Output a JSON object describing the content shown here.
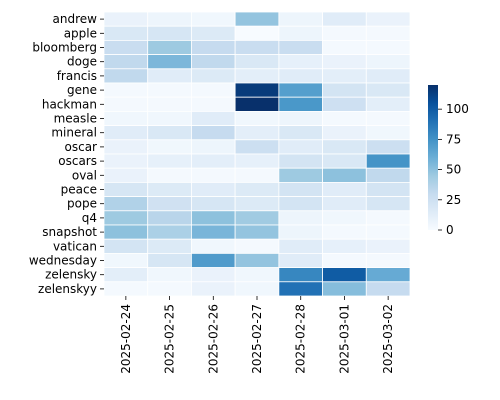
{
  "chart_data": {
    "type": "heatmap",
    "rows": [
      "andrew",
      "apple",
      "bloomberg",
      "doge",
      "francis",
      "gene",
      "hackman",
      "measle",
      "mineral",
      "oscar",
      "oscars",
      "oval",
      "peace",
      "pope",
      "q4",
      "snapshot",
      "vatican",
      "wednesday",
      "zelensky",
      "zelenskyy"
    ],
    "columns": [
      "2025-02-24",
      "2025-02-25",
      "2025-02-26",
      "2025-02-27",
      "2025-02-28",
      "2025-03-01",
      "2025-03-02"
    ],
    "values": [
      [
        8,
        6,
        4,
        48,
        6,
        14,
        8
      ],
      [
        18,
        20,
        16,
        0,
        6,
        2,
        2
      ],
      [
        28,
        45,
        30,
        28,
        28,
        2,
        2
      ],
      [
        32,
        55,
        32,
        18,
        10,
        8,
        6
      ],
      [
        32,
        14,
        16,
        12,
        14,
        12,
        14
      ],
      [
        2,
        2,
        2,
        115,
        68,
        22,
        18
      ],
      [
        2,
        2,
        2,
        120,
        72,
        25,
        12
      ],
      [
        4,
        4,
        14,
        4,
        6,
        2,
        2
      ],
      [
        14,
        18,
        30,
        12,
        18,
        8,
        4
      ],
      [
        8,
        4,
        6,
        26,
        14,
        18,
        26
      ],
      [
        8,
        10,
        12,
        10,
        22,
        18,
        74
      ],
      [
        8,
        2,
        2,
        2,
        45,
        50,
        32
      ],
      [
        20,
        16,
        14,
        16,
        22,
        14,
        22
      ],
      [
        38,
        24,
        20,
        16,
        22,
        14,
        20
      ],
      [
        45,
        35,
        50,
        44,
        6,
        4,
        2
      ],
      [
        50,
        40,
        56,
        48,
        6,
        2,
        2
      ],
      [
        22,
        16,
        4,
        2,
        14,
        10,
        8
      ],
      [
        4,
        20,
        70,
        48,
        14,
        2,
        2
      ],
      [
        12,
        4,
        8,
        4,
        80,
        100,
        62
      ],
      [
        2,
        2,
        8,
        4,
        90,
        52,
        30
      ]
    ],
    "colorbar": {
      "min": 0,
      "max": 120,
      "ticks": [
        0,
        25,
        50,
        75,
        100
      ]
    },
    "colormap": {
      "low": "#f7fbff",
      "high": "#08306b"
    },
    "xlabel": "",
    "ylabel": "",
    "title": ""
  }
}
